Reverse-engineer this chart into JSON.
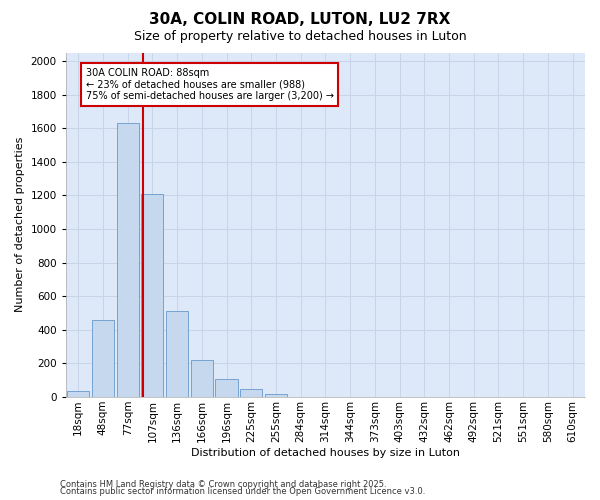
{
  "title1": "30A, COLIN ROAD, LUTON, LU2 7RX",
  "title2": "Size of property relative to detached houses in Luton",
  "xlabel": "Distribution of detached houses by size in Luton",
  "ylabel": "Number of detached properties",
  "categories": [
    "18sqm",
    "48sqm",
    "77sqm",
    "107sqm",
    "136sqm",
    "166sqm",
    "196sqm",
    "225sqm",
    "255sqm",
    "284sqm",
    "314sqm",
    "344sqm",
    "373sqm",
    "403sqm",
    "432sqm",
    "462sqm",
    "492sqm",
    "521sqm",
    "551sqm",
    "580sqm",
    "610sqm"
  ],
  "values": [
    35,
    460,
    1630,
    1210,
    510,
    220,
    110,
    45,
    20,
    0,
    0,
    0,
    0,
    0,
    0,
    0,
    0,
    0,
    0,
    0,
    0
  ],
  "bar_color": "#c5d8ee",
  "bar_edge_color": "#6699cc",
  "annotation_box_text": "30A COLIN ROAD: 88sqm\n← 23% of detached houses are smaller (988)\n75% of semi-detached houses are larger (3,200) →",
  "annotation_box_color": "#ffffff",
  "annotation_box_edge": "#cc0000",
  "vline_x_index": 2.62,
  "vline_color": "#cc0000",
  "grid_color": "#c8d4e8",
  "bg_color": "#dde8f8",
  "ylim": [
    0,
    2050
  ],
  "yticks": [
    0,
    200,
    400,
    600,
    800,
    1000,
    1200,
    1400,
    1600,
    1800,
    2000
  ],
  "footer1": "Contains HM Land Registry data © Crown copyright and database right 2025.",
  "footer2": "Contains public sector information licensed under the Open Government Licence v3.0.",
  "title1_fontsize": 11,
  "title2_fontsize": 9,
  "axis_label_fontsize": 8,
  "tick_fontsize": 7.5,
  "annotation_fontsize": 7,
  "footer_fontsize": 6
}
